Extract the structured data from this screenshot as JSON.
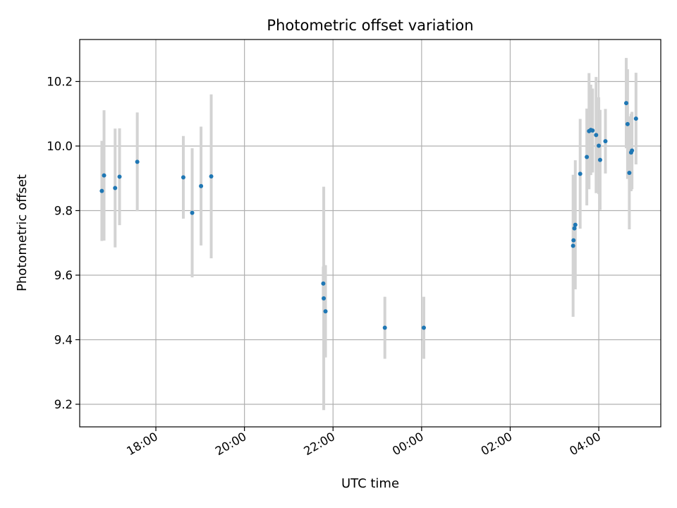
{
  "chart_data": {
    "type": "scatter",
    "title": "Photometric offset variation",
    "xlabel": "UTC time",
    "ylabel": "Photometric offset",
    "grid": true,
    "legend": "none",
    "x_unit": "hours since 00:00 UTC of the first day",
    "xlim": [
      16.28,
      29.4
    ],
    "ylim": [
      9.13,
      10.33
    ],
    "x_ticks": [
      {
        "x": 18,
        "label": "18:00"
      },
      {
        "x": 20,
        "label": "20:00"
      },
      {
        "x": 22,
        "label": "22:00"
      },
      {
        "x": 24,
        "label": "00:00"
      },
      {
        "x": 26,
        "label": "02:00"
      },
      {
        "x": 28,
        "label": "04:00"
      }
    ],
    "y_ticks": [
      {
        "y": 9.2,
        "label": "9.2"
      },
      {
        "y": 9.4,
        "label": "9.4"
      },
      {
        "y": 9.6,
        "label": "9.6"
      },
      {
        "y": 9.8,
        "label": "9.8"
      },
      {
        "y": 10.0,
        "label": "10.0"
      },
      {
        "y": 10.2,
        "label": "10.2"
      }
    ],
    "colors": {
      "points": "#1f77b4",
      "errorbars": "#d3d3d3",
      "grid": "#b0b0b0"
    },
    "series": [
      {
        "points": [
          {
            "x": 16.78,
            "y": 9.861,
            "err": 0.155
          },
          {
            "x": 16.83,
            "y": 9.909,
            "err": 0.202
          },
          {
            "x": 17.08,
            "y": 9.87,
            "err": 0.184
          },
          {
            "x": 17.18,
            "y": 9.905,
            "err": 0.15
          },
          {
            "x": 17.58,
            "y": 9.951,
            "err": 0.153
          },
          {
            "x": 18.62,
            "y": 9.903,
            "err": 0.128
          },
          {
            "x": 18.82,
            "y": 9.793,
            "err": 0.2
          },
          {
            "x": 19.02,
            "y": 9.876,
            "err": 0.184
          },
          {
            "x": 19.25,
            "y": 9.906,
            "err": 0.254
          },
          {
            "x": 21.78,
            "y": 9.574,
            "err": 0.053
          },
          {
            "x": 21.79,
            "y": 9.528,
            "err": 0.346
          },
          {
            "x": 21.83,
            "y": 9.488,
            "err": 0.143
          },
          {
            "x": 23.17,
            "y": 9.437,
            "err": 0.096
          },
          {
            "x": 24.05,
            "y": 9.437,
            "err": 0.096
          },
          {
            "x": 27.42,
            "y": 9.691,
            "err": 0.22
          },
          {
            "x": 27.43,
            "y": 9.708,
            "err": 0.12
          },
          {
            "x": 27.45,
            "y": 9.745,
            "err": 0.15
          },
          {
            "x": 27.47,
            "y": 9.756,
            "err": 0.2
          },
          {
            "x": 27.58,
            "y": 9.914,
            "err": 0.17
          },
          {
            "x": 27.73,
            "y": 9.966,
            "err": 0.15
          },
          {
            "x": 27.78,
            "y": 10.046,
            "err": 0.18
          },
          {
            "x": 27.82,
            "y": 10.05,
            "err": 0.14
          },
          {
            "x": 27.86,
            "y": 10.048,
            "err": 0.13
          },
          {
            "x": 27.94,
            "y": 10.034,
            "err": 0.18
          },
          {
            "x": 28.0,
            "y": 10.001,
            "err": 0.15
          },
          {
            "x": 28.03,
            "y": 9.957,
            "err": 0.155
          },
          {
            "x": 28.15,
            "y": 10.015,
            "err": 0.1
          },
          {
            "x": 28.62,
            "y": 10.133,
            "err": 0.14
          },
          {
            "x": 28.65,
            "y": 10.068,
            "err": 0.17
          },
          {
            "x": 28.69,
            "y": 9.917,
            "err": 0.175
          },
          {
            "x": 28.73,
            "y": 9.98,
            "err": 0.12
          },
          {
            "x": 28.75,
            "y": 9.986,
            "err": 0.12
          },
          {
            "x": 28.84,
            "y": 10.085,
            "err": 0.142
          }
        ]
      }
    ]
  }
}
